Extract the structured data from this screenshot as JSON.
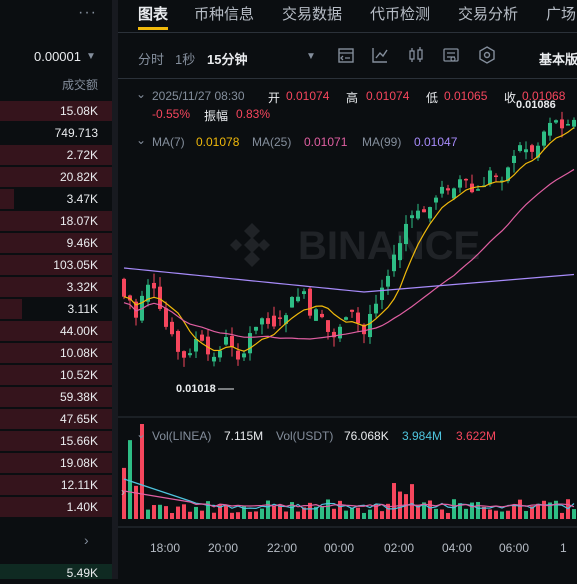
{
  "orderbook": {
    "menu_icon": "more-dots-icon",
    "precision": "0.00001",
    "header": "成交额",
    "rows": [
      "15.08K",
      "749.713",
      "2.72K",
      "20.82K",
      "3.47K",
      "18.07K",
      "9.46K",
      "103.05K",
      "3.32K",
      "3.11K",
      "44.00K",
      "10.08K",
      "10.52K",
      "59.38K",
      "47.65K",
      "15.66K",
      "19.08K",
      "12.11K",
      "1.40K"
    ],
    "bottom_value": "5.49K"
  },
  "tabs": [
    {
      "label": "图表",
      "active": true
    },
    {
      "label": "币种信息"
    },
    {
      "label": "交易数据"
    },
    {
      "label": "代币检测"
    },
    {
      "label": "交易分析"
    },
    {
      "label": "广场"
    }
  ],
  "toolbar": {
    "intervals": [
      "分时",
      "1秒",
      "15分钟"
    ],
    "active_interval": "15分钟",
    "view": "基本版"
  },
  "ohlc": {
    "datetime": "2025/11/27 08:30",
    "open_label": "开",
    "open": "0.01074",
    "high_label": "高",
    "high": "0.01074",
    "low_label": "低",
    "low": "0.01065",
    "close_label": "收",
    "close": "0.01068",
    "change": "-0.55%",
    "amp_label": "振幅",
    "amp": "0.83%"
  },
  "ma": {
    "ma7_label": "MA(7)",
    "ma7": "0.01078",
    "ma25_label": "MA(25)",
    "ma25": "0.01071",
    "ma99_label": "MA(99)",
    "ma99": "0.01047"
  },
  "vol": {
    "linea_label": "Vol(LINEA)",
    "linea": "7.115M",
    "usdt_label": "Vol(USDT)",
    "usdt": "76.068K",
    "v1": "3.984M",
    "v2": "3.622M"
  },
  "chart_data": {
    "type": "candlestick",
    "x_ticks": [
      "18:00",
      "20:00",
      "22:00",
      "00:00",
      "02:00",
      "04:00",
      "06:00",
      "1"
    ],
    "low_marker": "0.01018",
    "high_marker": "0.01086",
    "watermark": "BINANCE",
    "colors": {
      "up": "#2ebd85",
      "down": "#f6465d",
      "ma7": "#f0b90b",
      "ma25": "#e05fa2",
      "ma99": "#a78bfa",
      "vol_ma1": "#4fc4de",
      "vol_ma2": "#e05fa2"
    }
  }
}
